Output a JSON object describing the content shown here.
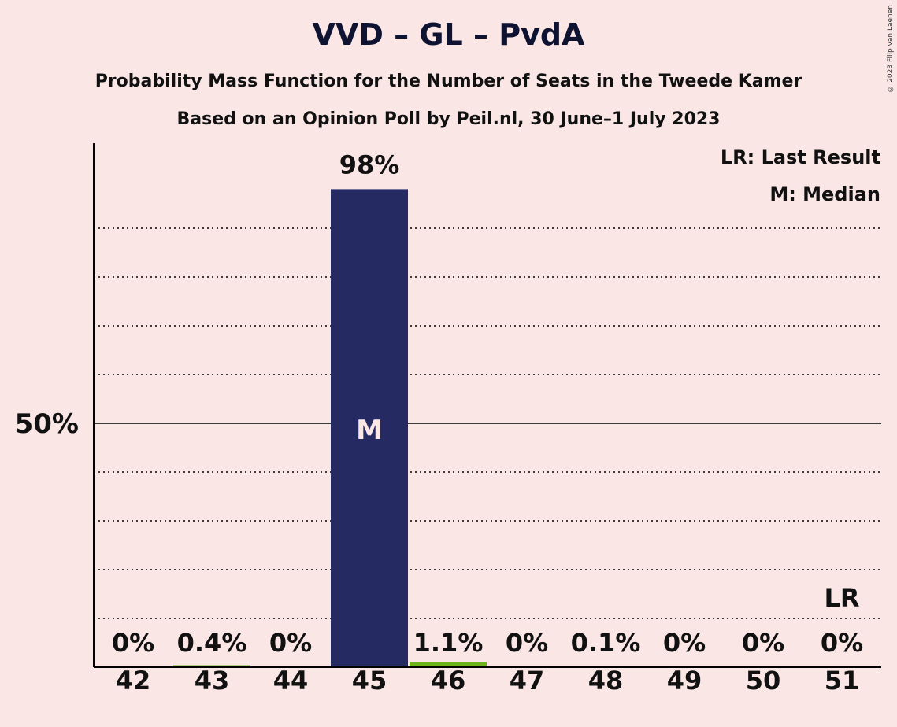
{
  "chart_data": {
    "type": "bar",
    "title": "VVD – GL – PvdA",
    "subtitle": "Probability Mass Function for the Number of Seats in the Tweede Kamer",
    "source": "Based on an Opinion Poll by Peil.nl, 30 June–1 July 2023",
    "categories": [
      "42",
      "43",
      "44",
      "45",
      "46",
      "47",
      "48",
      "49",
      "50",
      "51"
    ],
    "values": [
      0,
      0.4,
      0,
      98,
      1.1,
      0,
      0.1,
      0,
      0,
      0
    ],
    "value_labels": [
      "0%",
      "0.4%",
      "0%",
      "98%",
      "1.1%",
      "0%",
      "0.1%",
      "0%",
      "0%",
      "0%"
    ],
    "median_category": "45",
    "median_marker": "M",
    "last_result_category": "51",
    "last_result_marker": "LR",
    "ylim": [
      0,
      100
    ],
    "ytick_major": 50,
    "ytick_major_label": "50%",
    "ygrid_step": 10,
    "legend": [
      "LR: Last Result",
      "M: Median"
    ],
    "legend_position": "top-right",
    "copyright": "© 2023 Filip van Laenen",
    "colors": {
      "background": "#fbe6e6",
      "bar_main": "#262a63",
      "bar_minor": "#6cb41a",
      "axis": "#000000"
    }
  }
}
